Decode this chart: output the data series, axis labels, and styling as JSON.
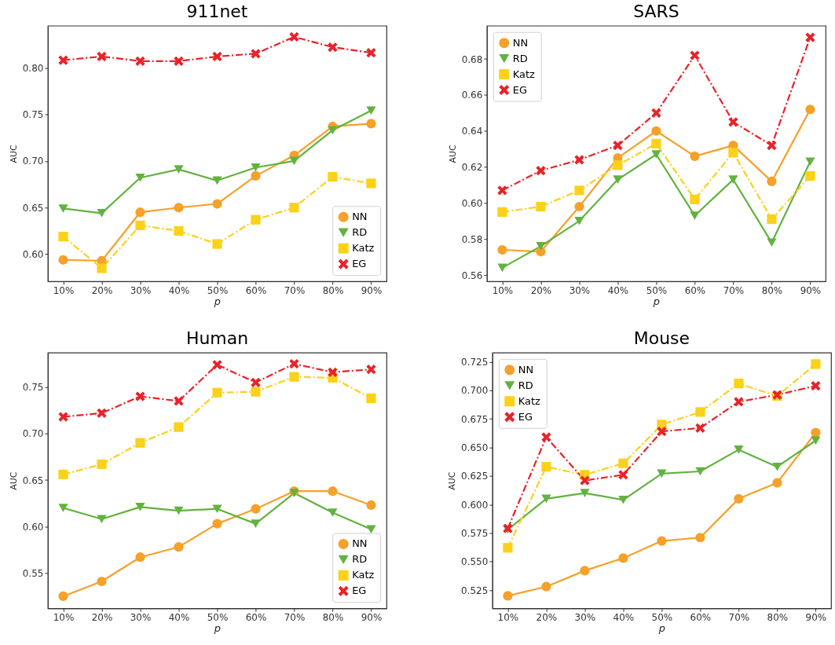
{
  "chart_data": [
    {
      "type": "line",
      "title": "911net",
      "xlabel": "p",
      "ylabel": "AUC",
      "categories": [
        "10%",
        "20%",
        "30%",
        "40%",
        "50%",
        "60%",
        "70%",
        "80%",
        "90%"
      ],
      "ylim": [
        0.571,
        0.845
      ],
      "yticks": [
        {
          "value": 0.6,
          "label": "0.60"
        },
        0.65,
        {
          "value": 0.7,
          "label": "0.70"
        },
        0.75,
        {
          "value": 0.8,
          "label": "0.80"
        }
      ],
      "legend": "bottom right",
      "grid": false,
      "series": [
        {
          "name": "NN",
          "color": "#f5a12a",
          "marker": "circle",
          "line_style": "solid",
          "values": [
            0.594,
            0.593,
            0.645,
            0.65,
            0.654,
            0.684,
            0.706,
            0.737,
            0.74
          ]
        },
        {
          "name": "RD",
          "color": "#62b23f",
          "marker": "triangle",
          "line_style": "solid",
          "values": [
            0.649,
            0.644,
            0.682,
            0.691,
            0.679,
            0.693,
            0.7,
            0.733,
            0.754
          ]
        },
        {
          "name": "Katz",
          "color": "#fcd11a",
          "marker": "square",
          "line_style": "dashdot",
          "values": [
            0.619,
            0.585,
            0.631,
            0.625,
            0.611,
            0.637,
            0.65,
            0.683,
            0.676
          ]
        },
        {
          "name": "EG",
          "color": "#e8232a",
          "marker": "cross",
          "line_style": "dashdot",
          "values": [
            0.808,
            0.812,
            0.807,
            0.807,
            0.812,
            0.815,
            0.833,
            0.822,
            0.816
          ]
        }
      ]
    },
    {
      "type": "line",
      "title": "SARS",
      "xlabel": "p",
      "ylabel": "AUC",
      "categories": [
        "10%",
        "20%",
        "30%",
        "40%",
        "50%",
        "60%",
        "70%",
        "80%",
        "90%"
      ],
      "ylim": [
        0.5565,
        0.6985
      ],
      "yticks": [
        0.56,
        0.58,
        {
          "value": 0.6,
          "label": "0.60"
        },
        0.62,
        0.64,
        0.66,
        0.68
      ],
      "legend": "top left",
      "grid": false,
      "series": [
        {
          "name": "NN",
          "color": "#f5a12a",
          "marker": "circle",
          "line_style": "solid",
          "values": [
            0.574,
            0.573,
            0.598,
            0.625,
            0.64,
            0.626,
            0.632,
            0.612,
            0.652
          ]
        },
        {
          "name": "RD",
          "color": "#62b23f",
          "marker": "triangle",
          "line_style": "solid",
          "values": [
            0.564,
            0.576,
            0.59,
            0.613,
            0.627,
            0.593,
            0.613,
            0.578,
            0.623
          ]
        },
        {
          "name": "Katz",
          "color": "#fcd11a",
          "marker": "square",
          "line_style": "dashdot",
          "values": [
            0.595,
            0.598,
            0.607,
            0.621,
            0.633,
            0.602,
            0.628,
            0.591,
            0.615
          ]
        },
        {
          "name": "EG",
          "color": "#e8232a",
          "marker": "cross",
          "line_style": "dashdot",
          "values": [
            0.607,
            0.618,
            0.624,
            0.632,
            0.65,
            0.682,
            0.645,
            0.632,
            0.692
          ]
        }
      ]
    },
    {
      "type": "line",
      "title": "Human",
      "xlabel": "p",
      "ylabel": "AUC",
      "categories": [
        "10%",
        "20%",
        "30%",
        "40%",
        "50%",
        "60%",
        "70%",
        "80%",
        "90%"
      ],
      "ylim": [
        0.512,
        0.787
      ],
      "yticks": [
        0.55,
        {
          "value": 0.6,
          "label": "0.60"
        },
        0.65,
        {
          "value": 0.7,
          "label": "0.70"
        },
        0.75
      ],
      "legend": "bottom right",
      "grid": false,
      "series": [
        {
          "name": "NN",
          "color": "#f5a12a",
          "marker": "circle",
          "line_style": "solid",
          "values": [
            0.525,
            0.541,
            0.567,
            0.578,
            0.603,
            0.619,
            0.638,
            0.638,
            0.623
          ]
        },
        {
          "name": "RD",
          "color": "#62b23f",
          "marker": "triangle",
          "line_style": "solid",
          "values": [
            0.62,
            0.608,
            0.621,
            0.617,
            0.619,
            0.603,
            0.636,
            0.615,
            0.597
          ]
        },
        {
          "name": "Katz",
          "color": "#fcd11a",
          "marker": "square",
          "line_style": "dashdot",
          "values": [
            0.656,
            0.667,
            0.69,
            0.707,
            0.744,
            0.745,
            0.761,
            0.76,
            0.738
          ]
        },
        {
          "name": "EG",
          "color": "#e8232a",
          "marker": "cross",
          "line_style": "dashdot",
          "values": [
            0.718,
            0.722,
            0.74,
            0.735,
            0.774,
            0.755,
            0.775,
            0.766,
            0.769
          ]
        }
      ]
    },
    {
      "type": "line",
      "title": "Mouse",
      "xlabel": "p",
      "ylabel": "AUC",
      "categories": [
        "10%",
        "20%",
        "30%",
        "40%",
        "50%",
        "60%",
        "70%",
        "80%",
        "90%"
      ],
      "ylim": [
        0.509,
        0.733
      ],
      "yticks": [
        0.525,
        {
          "value": 0.55,
          "label": "0.550"
        },
        0.575,
        {
          "value": 0.6,
          "label": "0.600"
        },
        0.625,
        {
          "value": 0.65,
          "label": "0.650"
        },
        0.675,
        {
          "value": 0.7,
          "label": "0.700"
        },
        0.725
      ],
      "legend": "top left",
      "grid": false,
      "series": [
        {
          "name": "NN",
          "color": "#f5a12a",
          "marker": "circle",
          "line_style": "solid",
          "values": [
            0.52,
            0.528,
            0.542,
            0.553,
            0.568,
            0.571,
            0.605,
            0.619,
            0.663
          ]
        },
        {
          "name": "RD",
          "color": "#62b23f",
          "marker": "triangle",
          "line_style": "solid",
          "values": [
            0.578,
            0.605,
            0.61,
            0.604,
            0.627,
            0.629,
            0.648,
            0.633,
            0.656
          ]
        },
        {
          "name": "Katz",
          "color": "#fcd11a",
          "marker": "square",
          "line_style": "dashdot",
          "values": [
            0.562,
            0.633,
            0.626,
            0.636,
            0.67,
            0.681,
            0.706,
            0.695,
            0.723
          ]
        },
        {
          "name": "EG",
          "color": "#e8232a",
          "marker": "cross",
          "line_style": "dashdot",
          "values": [
            0.579,
            0.659,
            0.621,
            0.626,
            0.664,
            0.667,
            0.69,
            0.696,
            0.704
          ]
        }
      ]
    }
  ]
}
